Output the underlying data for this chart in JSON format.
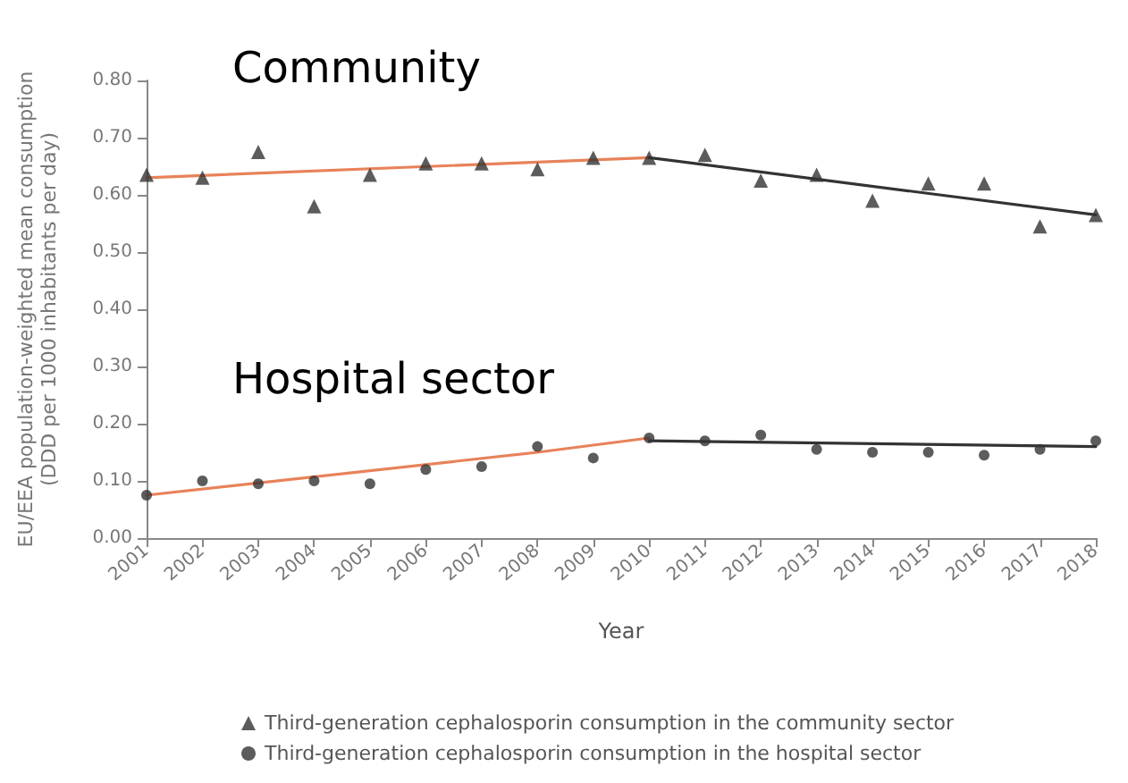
{
  "chart_data": {
    "type": "scatter",
    "xlabel": "Year",
    "ylabel": "EU/EEA population-weighted mean consumption\n(DDD per 1000 inhabitants per day)",
    "categories": [
      "2001",
      "2002",
      "2003",
      "2004",
      "2005",
      "2006",
      "2007",
      "2008",
      "2009",
      "2010",
      "2011",
      "2012",
      "2013",
      "2014",
      "2015",
      "2016",
      "2017",
      "2018"
    ],
    "ylim": [
      0,
      0.8
    ],
    "yticks": [
      {
        "value": 0,
        "label": "0.00"
      },
      {
        "value": 0.1,
        "label": "0.10"
      },
      {
        "value": 0.2,
        "label": "0.20"
      },
      {
        "value": 0.3,
        "label": "0.30"
      },
      {
        "value": 0.4,
        "label": "0.40"
      },
      {
        "value": 0.5,
        "label": "0.50"
      },
      {
        "value": 0.6,
        "label": "0.60"
      },
      {
        "value": 0.7,
        "label": "0.70"
      },
      {
        "value": 0.8,
        "label": "0.80"
      }
    ],
    "grid": false,
    "legend": "bottom",
    "annotations": [
      "Community",
      "Hospital sector"
    ],
    "series": [
      {
        "name": "Third-generation cephalosporin consumption in the community sector",
        "marker": "triangle",
        "color": "#333333",
        "values": [
          0.635,
          0.63,
          0.675,
          0.58,
          0.635,
          0.655,
          0.655,
          0.645,
          0.665,
          0.665,
          0.67,
          0.625,
          0.635,
          0.59,
          0.62,
          0.62,
          0.545,
          0.565
        ]
      },
      {
        "name": "Third-generation cephalosporin consumption in the hospital sector",
        "marker": "circle",
        "color": "#333333",
        "values": [
          0.075,
          0.1,
          0.095,
          0.1,
          0.095,
          0.12,
          0.125,
          0.16,
          0.14,
          0.175,
          0.17,
          0.18,
          0.155,
          0.15,
          0.15,
          0.145,
          0.155,
          0.17
        ]
      },
      {
        "type": "line",
        "marker": "none",
        "line_style": "solid",
        "color": "#e8825a",
        "values": [
          0.63,
          null,
          null,
          null,
          null,
          null,
          null,
          null,
          null,
          0.665,
          null,
          null,
          null,
          null,
          null,
          null,
          null,
          null
        ]
      },
      {
        "type": "line",
        "marker": "none",
        "line_style": "solid",
        "color": "#333333",
        "values": [
          null,
          null,
          null,
          null,
          null,
          null,
          null,
          null,
          null,
          0.665,
          null,
          null,
          null,
          null,
          null,
          null,
          null,
          0.565
        ]
      },
      {
        "type": "line",
        "marker": "none",
        "line_style": "solid",
        "color": "#e8825a",
        "values": [
          0.075,
          null,
          null,
          null,
          null,
          null,
          null,
          0.15,
          null,
          0.175,
          null,
          null,
          null,
          null,
          null,
          null,
          null,
          null
        ]
      },
      {
        "type": "line",
        "marker": "none",
        "line_style": "solid",
        "color": "#333333",
        "values": [
          null,
          null,
          null,
          null,
          null,
          null,
          null,
          null,
          null,
          0.17,
          null,
          null,
          null,
          null,
          null,
          null,
          null,
          0.16
        ]
      }
    ]
  }
}
